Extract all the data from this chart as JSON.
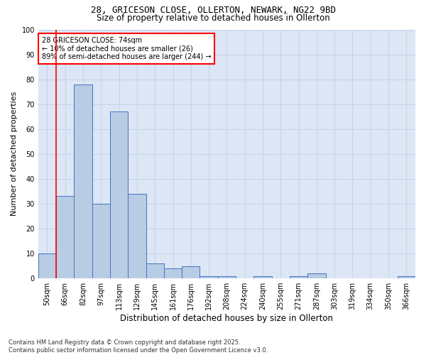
{
  "title_line1": "28, GRICESON CLOSE, OLLERTON, NEWARK, NG22 9BD",
  "title_line2": "Size of property relative to detached houses in Ollerton",
  "xlabel": "Distribution of detached houses by size in Ollerton",
  "ylabel": "Number of detached properties",
  "categories": [
    "50sqm",
    "66sqm",
    "82sqm",
    "97sqm",
    "113sqm",
    "129sqm",
    "145sqm",
    "161sqm",
    "176sqm",
    "192sqm",
    "208sqm",
    "224sqm",
    "240sqm",
    "255sqm",
    "271sqm",
    "287sqm",
    "303sqm",
    "319sqm",
    "334sqm",
    "350sqm",
    "366sqm"
  ],
  "values": [
    10,
    33,
    78,
    30,
    67,
    34,
    6,
    4,
    5,
    1,
    1,
    0,
    1,
    0,
    1,
    2,
    0,
    0,
    0,
    0,
    1
  ],
  "bar_color": "#b8cce4",
  "bar_edge_color": "#4472c4",
  "vline_x_index": 1,
  "annotation_text_line1": "28 GRICESON CLOSE: 74sqm",
  "annotation_text_line2": "← 10% of detached houses are smaller (26)",
  "annotation_text_line3": "89% of semi-detached houses are larger (244) →",
  "annotation_box_color": "white",
  "annotation_box_edge": "red",
  "vline_color": "red",
  "ylim": [
    0,
    100
  ],
  "yticks": [
    0,
    10,
    20,
    30,
    40,
    50,
    60,
    70,
    80,
    90,
    100
  ],
  "grid_color": "#c8d4e8",
  "background_color": "#dce6f5",
  "footer_line1": "Contains HM Land Registry data © Crown copyright and database right 2025.",
  "footer_line2": "Contains public sector information licensed under the Open Government Licence v3.0.",
  "title1_fontsize": 9,
  "title2_fontsize": 8.5,
  "ylabel_fontsize": 8,
  "xlabel_fontsize": 8.5,
  "tick_fontsize": 7,
  "annotation_fontsize": 7,
  "footer_fontsize": 6
}
